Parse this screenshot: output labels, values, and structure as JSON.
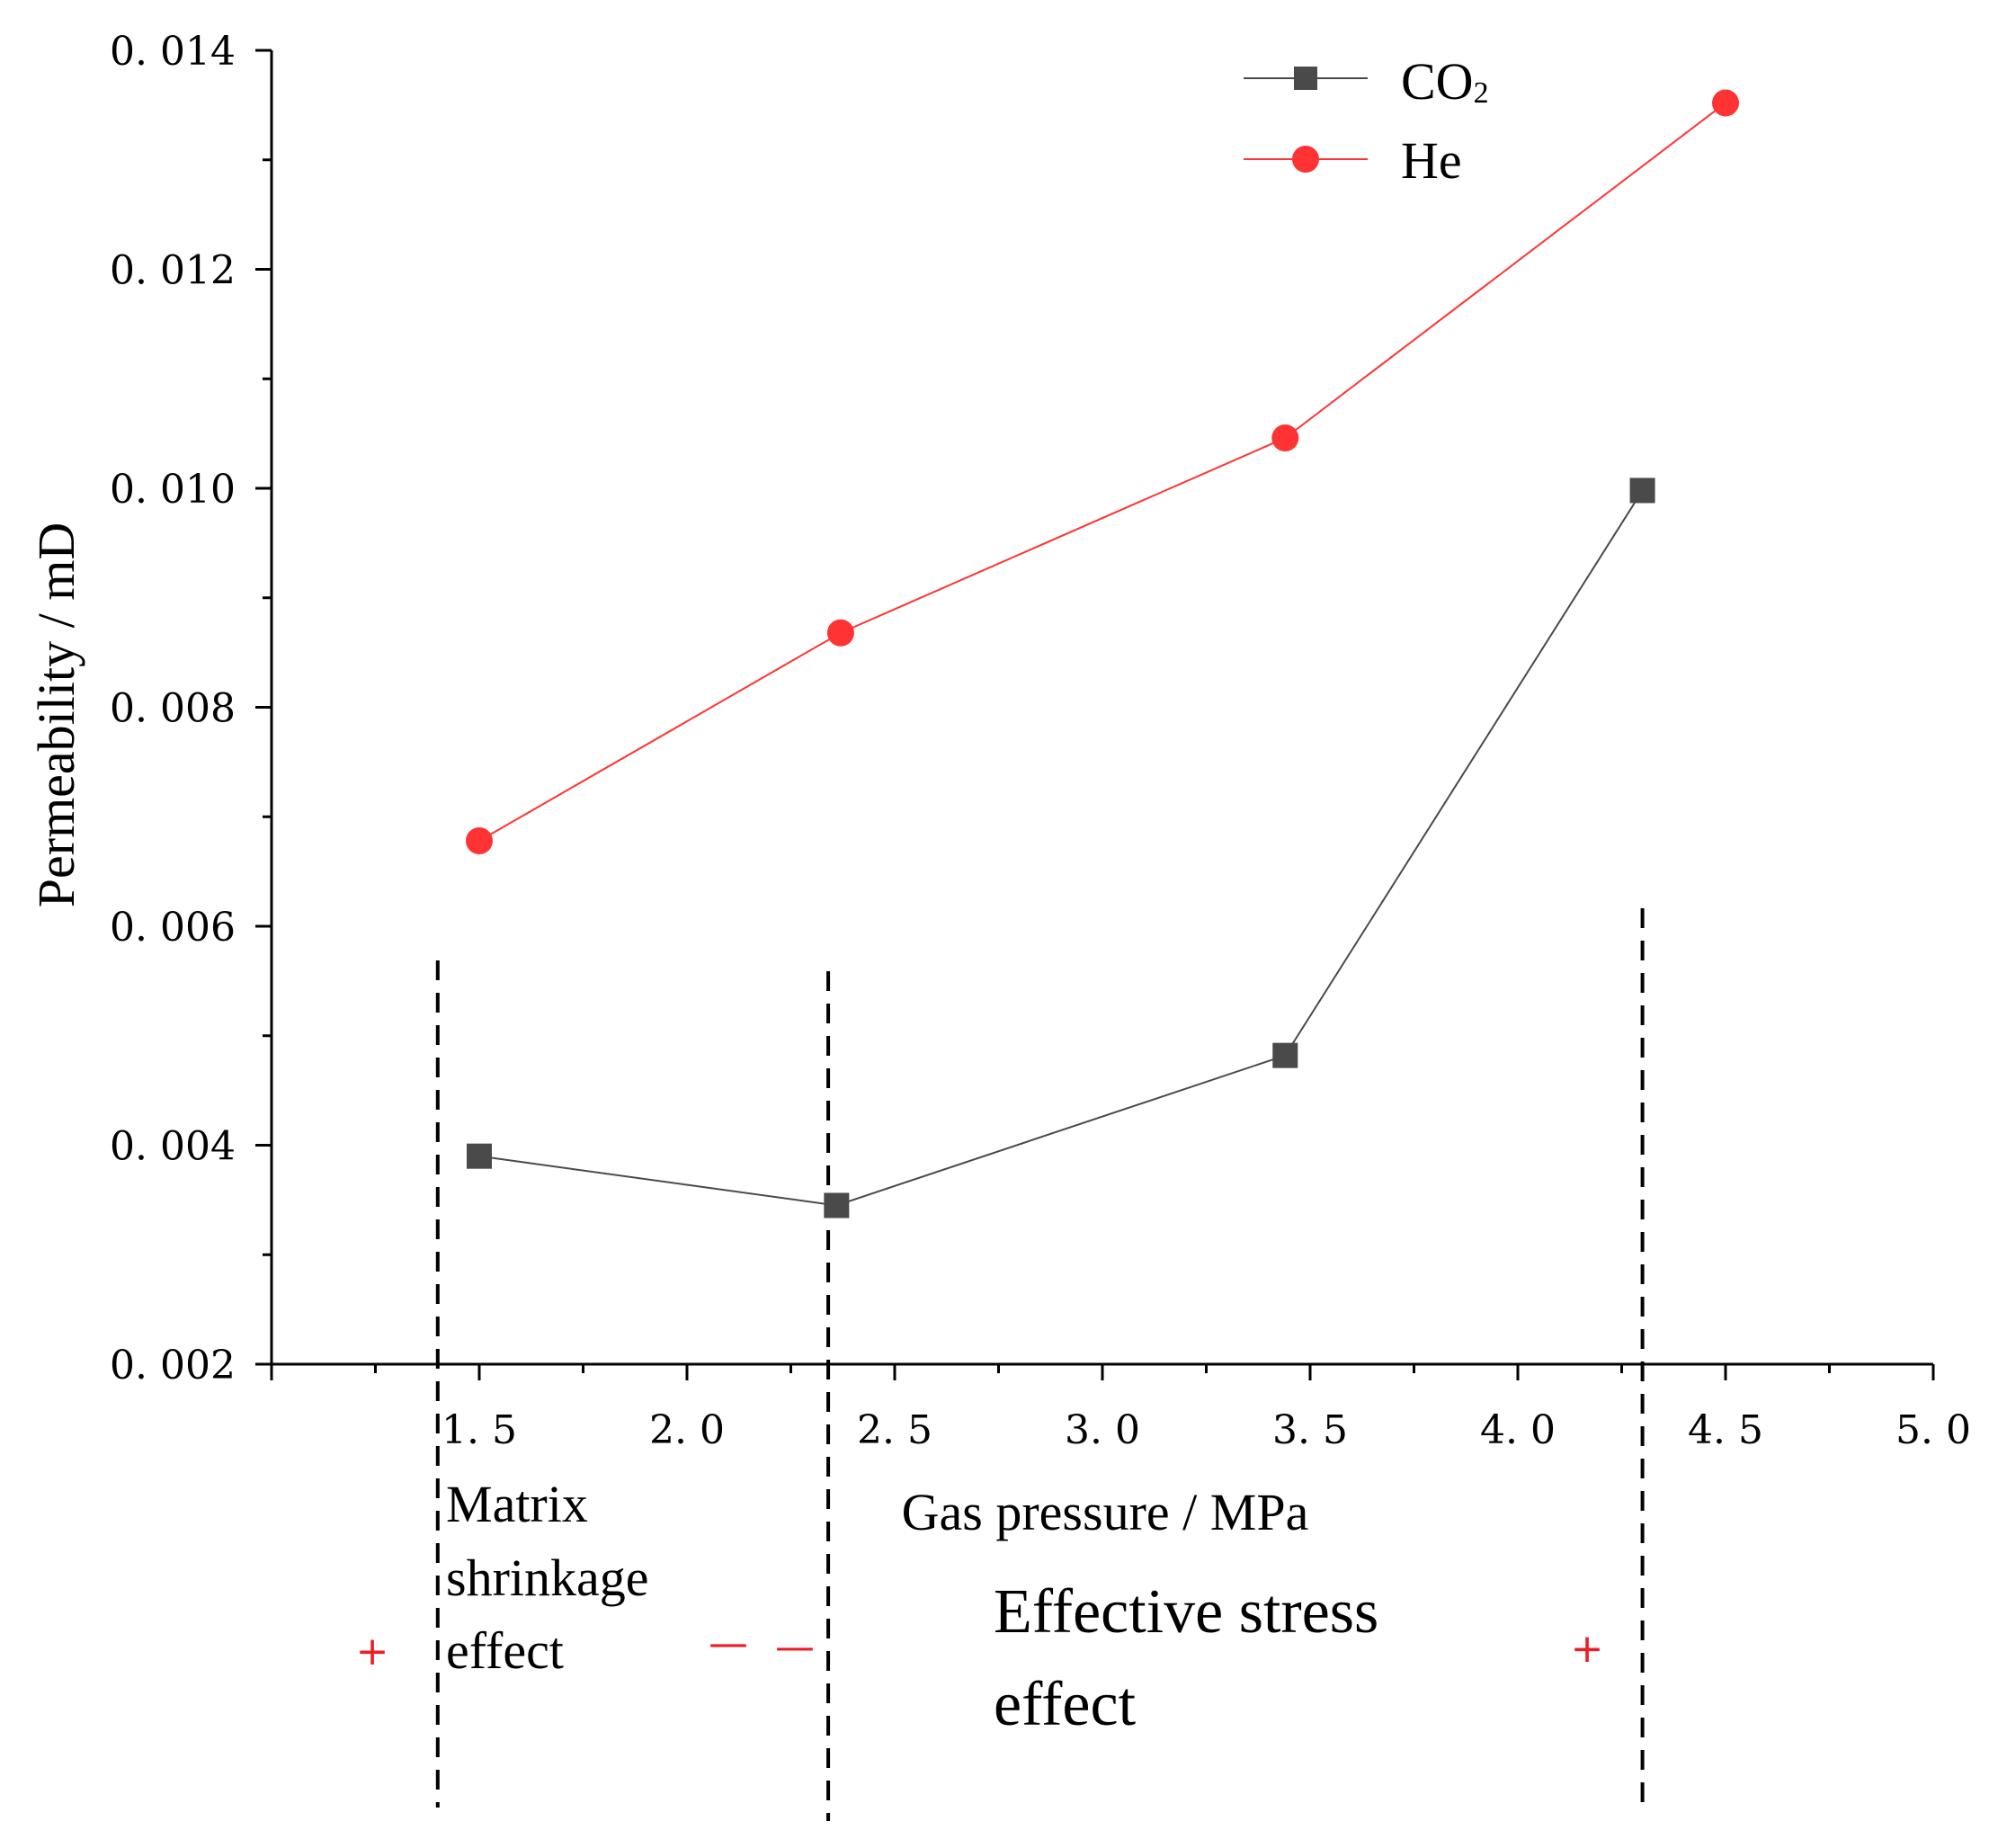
{
  "chart_data": {
    "type": "line",
    "title": "",
    "xlabel": "Gas pressure / MPa",
    "ylabel": "Permeability / mD",
    "xlim": [
      1.0,
      5.0
    ],
    "ylim": [
      0.002,
      0.014
    ],
    "x_ticks": [
      1.5,
      2.0,
      2.5,
      3.0,
      3.5,
      4.0,
      4.5,
      5.0
    ],
    "x_tick_labels": [
      "1. 5",
      "2. 0",
      "2. 5",
      "3. 0",
      "3. 5",
      "4. 0",
      "4. 5",
      "5. 0"
    ],
    "y_ticks": [
      0.002,
      0.004,
      0.006,
      0.008,
      0.01,
      0.012,
      0.014
    ],
    "y_tick_labels": [
      "0. 002",
      "0. 004",
      "0. 006",
      "0. 008",
      "0. 010",
      "0. 012",
      "0. 014"
    ],
    "grid": false,
    "legend_position": "top-right",
    "series": [
      {
        "name": "CO2",
        "label_main": "CO",
        "label_sub": "2",
        "color": "#4a4a4a",
        "marker": "square",
        "x": [
          1.5,
          2.36,
          3.44,
          4.3
        ],
        "y": [
          0.0039,
          0.00345,
          0.00482,
          0.00998
        ]
      },
      {
        "name": "He",
        "label_main": "He",
        "label_sub": "",
        "color": "#ff3333",
        "marker": "circle",
        "x": [
          1.5,
          2.37,
          3.44,
          4.5
        ],
        "y": [
          0.00678,
          0.00868,
          0.01046,
          0.01352
        ]
      }
    ],
    "divider_x": [
      1.4,
      2.34,
      4.3
    ],
    "annotations": {
      "matrix_line1": "Matrix",
      "matrix_line2": "shrinkage",
      "matrix_line3": "effect",
      "stress_line1": "Effective stress",
      "stress_line2": "effect",
      "sign_plus_left": "+",
      "sign_minus_mid1": "—",
      "sign_minus_mid2": "—",
      "sign_plus_right": "+"
    }
  }
}
